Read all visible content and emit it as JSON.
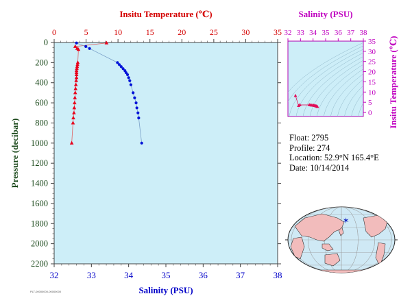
{
  "chart_data": [
    {
      "type": "scatter",
      "name": "main-profile",
      "top_axis_label": "Insitu Temperature (℃)",
      "bottom_axis_label": "Salinity (PSU)",
      "left_axis_label": "Pressure (decibar)",
      "temperature_range": [
        0,
        35
      ],
      "temperature_ticks": [
        "0",
        "5",
        "10",
        "15",
        "20",
        "25",
        "30",
        "35"
      ],
      "salinity_range": [
        32,
        38
      ],
      "salinity_ticks": [
        "32",
        "33",
        "34",
        "35",
        "36",
        "37",
        "38"
      ],
      "pressure_range": [
        0,
        2200
      ],
      "pressure_ticks": [
        "0",
        "200",
        "400",
        "600",
        "800",
        "1000",
        "1200",
        "1400",
        "1600",
        "1800",
        "2000",
        "2200"
      ],
      "series": [
        {
          "quantity": "temperature",
          "color": "#e8001c",
          "marker": "triangle",
          "points": [
            {
              "p": 5,
              "v": 8.2
            },
            {
              "p": 40,
              "v": 3.3
            },
            {
              "p": 60,
              "v": 3.6
            },
            {
              "p": 70,
              "v": 3.8
            },
            {
              "p": 200,
              "v": 3.7
            },
            {
              "p": 220,
              "v": 3.65
            },
            {
              "p": 240,
              "v": 3.6
            },
            {
              "p": 260,
              "v": 3.55
            },
            {
              "p": 280,
              "v": 3.5
            },
            {
              "p": 300,
              "v": 3.5
            },
            {
              "p": 320,
              "v": 3.5
            },
            {
              "p": 350,
              "v": 3.5
            },
            {
              "p": 380,
              "v": 3.45
            },
            {
              "p": 420,
              "v": 3.4
            },
            {
              "p": 460,
              "v": 3.35
            },
            {
              "p": 500,
              "v": 3.3
            },
            {
              "p": 550,
              "v": 3.25
            },
            {
              "p": 600,
              "v": 3.2
            },
            {
              "p": 650,
              "v": 3.15
            },
            {
              "p": 700,
              "v": 3.1
            },
            {
              "p": 750,
              "v": 3.0
            },
            {
              "p": 800,
              "v": 2.95
            },
            {
              "p": 1000,
              "v": 2.75
            }
          ]
        },
        {
          "quantity": "salinity",
          "color": "#0012d8",
          "marker": "circle",
          "points": [
            {
              "p": 5,
              "v": 32.6
            },
            {
              "p": 40,
              "v": 32.85
            },
            {
              "p": 60,
              "v": 32.95
            },
            {
              "p": 200,
              "v": 33.7
            },
            {
              "p": 220,
              "v": 33.75
            },
            {
              "p": 240,
              "v": 33.8
            },
            {
              "p": 260,
              "v": 33.85
            },
            {
              "p": 280,
              "v": 33.9
            },
            {
              "p": 300,
              "v": 33.93
            },
            {
              "p": 320,
              "v": 33.97
            },
            {
              "p": 350,
              "v": 34.0
            },
            {
              "p": 380,
              "v": 34.03
            },
            {
              "p": 420,
              "v": 34.06
            },
            {
              "p": 500,
              "v": 34.12
            },
            {
              "p": 550,
              "v": 34.16
            },
            {
              "p": 600,
              "v": 34.2
            },
            {
              "p": 650,
              "v": 34.22
            },
            {
              "p": 700,
              "v": 34.25
            },
            {
              "p": 750,
              "v": 34.27
            },
            {
              "p": 1000,
              "v": 34.35
            }
          ]
        }
      ]
    },
    {
      "type": "scatter",
      "name": "t-s-diagram",
      "top_axis_label": "Salinity (PSU)",
      "right_axis_label": "Insitu Temperature (℃)",
      "salinity_range": [
        32,
        38
      ],
      "salinity_ticks": [
        "32",
        "33",
        "34",
        "35",
        "36",
        "37",
        "38"
      ],
      "temperature_range": [
        -2,
        35
      ],
      "temperature_ticks": [
        "0",
        "5",
        "10",
        "15",
        "20",
        "25",
        "30",
        "35"
      ],
      "points_color": "#e0105a",
      "points": [
        {
          "s": 32.6,
          "t": 8.2
        },
        {
          "s": 32.85,
          "t": 3.3
        },
        {
          "s": 32.95,
          "t": 3.7
        },
        {
          "s": 33.7,
          "t": 3.7
        },
        {
          "s": 33.8,
          "t": 3.6
        },
        {
          "s": 33.9,
          "t": 3.5
        },
        {
          "s": 34.0,
          "t": 3.5
        },
        {
          "s": 34.06,
          "t": 3.4
        },
        {
          "s": 34.12,
          "t": 3.3
        },
        {
          "s": 34.2,
          "t": 3.2
        },
        {
          "s": 34.25,
          "t": 3.1
        },
        {
          "s": 34.3,
          "t": 2.95
        },
        {
          "s": 34.35,
          "t": 2.75
        }
      ]
    }
  ],
  "info": {
    "float": "Float:  2795",
    "profile": "Profile:  274",
    "location": "Location:  52.9°N  165.4°E",
    "date": "Date:  10/14/2014"
  },
  "map": {
    "float_marker_lat": 52.9,
    "float_marker_lon": 165.4,
    "marker_color": "#1020c0",
    "ocean_color": "#cfe9f5",
    "land_color": "#f2bcbc"
  },
  "footer_note": "PLT-00000000-00000000"
}
